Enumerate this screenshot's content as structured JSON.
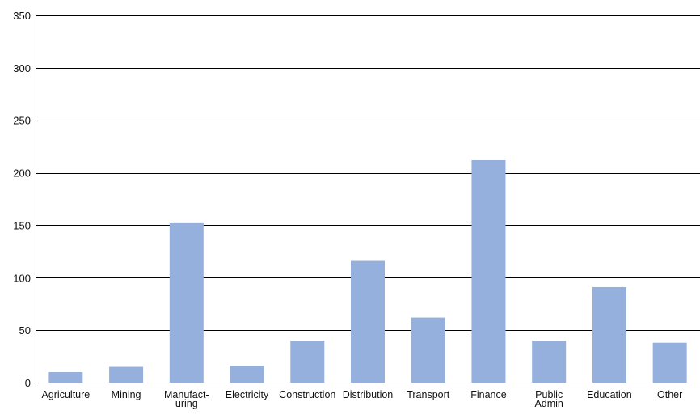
{
  "chart_data": {
    "type": "bar",
    "title": "",
    "xlabel": "",
    "ylabel": "",
    "categories": [
      "Agriculture",
      "Mining",
      "Manufacturing",
      "Electricity",
      "Construction",
      "Distribution",
      "Transport",
      "Finance",
      "Public Admin",
      "Education",
      "Other"
    ],
    "category_label_lines": [
      [
        "Agriculture"
      ],
      [
        "Mining"
      ],
      [
        "Manufact-",
        "uring"
      ],
      [
        "Electricity"
      ],
      [
        "Construction"
      ],
      [
        "Distribution"
      ],
      [
        "Transport"
      ],
      [
        "Finance"
      ],
      [
        "Public",
        "Admin"
      ],
      [
        "Education"
      ],
      [
        "Other"
      ]
    ],
    "values": [
      10,
      15,
      152,
      16,
      40,
      116,
      62,
      212,
      40,
      91,
      38
    ],
    "ylim": [
      0,
      350
    ],
    "yticks": [
      0,
      50,
      100,
      150,
      200,
      250,
      300,
      350
    ],
    "grid": true,
    "legend": "none",
    "bar_color": "#95b0dc",
    "grid_color": "#000000"
  }
}
